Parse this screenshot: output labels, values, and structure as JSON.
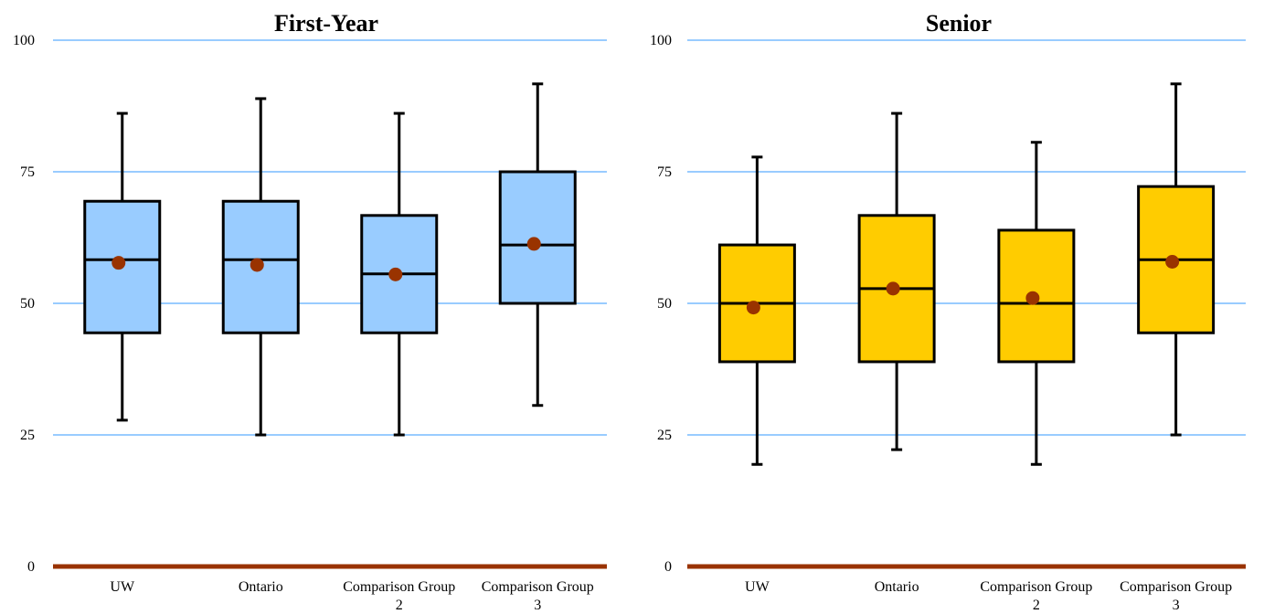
{
  "chart_data": [
    {
      "type": "boxplot",
      "title": "First-Year",
      "xlabel": "",
      "ylabel": "",
      "ylim": [
        0,
        100
      ],
      "yticks": [
        "0",
        "25",
        "50",
        "75",
        "100"
      ],
      "grid": true,
      "categories": [
        "UW",
        "Ontario",
        "Comparison Group 2",
        "Comparison Group 3"
      ],
      "category_lines": [
        [
          "UW"
        ],
        [
          "Ontario"
        ],
        [
          "Comparison Group",
          "2"
        ],
        [
          "Comparison Group",
          "3"
        ]
      ],
      "boxes": [
        {
          "min": 27.8,
          "q1": 44.4,
          "median": 58.3,
          "q3": 69.4,
          "max": 86.1,
          "mean": 57.7
        },
        {
          "min": 25.0,
          "q1": 44.4,
          "median": 58.3,
          "q3": 69.4,
          "max": 88.9,
          "mean": 57.3
        },
        {
          "min": 25.0,
          "q1": 44.4,
          "median": 55.6,
          "q3": 66.7,
          "max": 86.1,
          "mean": 55.5
        },
        {
          "min": 30.6,
          "q1": 50.0,
          "median": 61.1,
          "q3": 75.0,
          "max": 91.7,
          "mean": 61.3
        }
      ],
      "colors": {
        "box": "#99ccff",
        "mean": "#993300",
        "grid": "#99ccff",
        "baseline": "#993300",
        "outline": "#000000"
      }
    },
    {
      "type": "boxplot",
      "title": "Senior",
      "xlabel": "",
      "ylabel": "",
      "ylim": [
        0,
        100
      ],
      "yticks": [
        "0",
        "25",
        "50",
        "75",
        "100"
      ],
      "grid": true,
      "categories": [
        "UW",
        "Ontario",
        "Comparison Group 2",
        "Comparison Group 3"
      ],
      "category_lines": [
        [
          "UW"
        ],
        [
          "Ontario"
        ],
        [
          "Comparison Group",
          "2"
        ],
        [
          "Comparison Group",
          "3"
        ]
      ],
      "boxes": [
        {
          "min": 19.4,
          "q1": 38.9,
          "median": 50.0,
          "q3": 61.1,
          "max": 77.8,
          "mean": 49.2
        },
        {
          "min": 22.2,
          "q1": 38.9,
          "median": 52.8,
          "q3": 66.7,
          "max": 86.1,
          "mean": 52.8
        },
        {
          "min": 19.4,
          "q1": 38.9,
          "median": 50.0,
          "q3": 63.9,
          "max": 80.6,
          "mean": 51.0
        },
        {
          "min": 25.0,
          "q1": 44.4,
          "median": 58.3,
          "q3": 72.2,
          "max": 91.7,
          "mean": 57.9
        }
      ],
      "colors": {
        "box": "#ffcc00",
        "mean": "#993300",
        "grid": "#99ccff",
        "baseline": "#993300",
        "outline": "#000000"
      }
    }
  ]
}
